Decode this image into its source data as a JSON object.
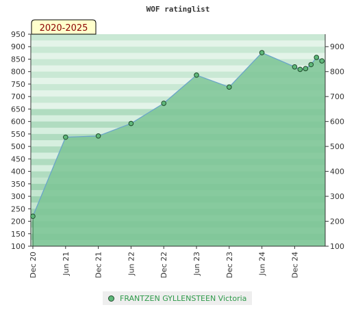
{
  "chart_data": {
    "type": "area",
    "title": "WOF ratinglist",
    "period_badge": "2020-2025",
    "x_ticks": [
      "Dec 20",
      "Jun 21",
      "Dec 21",
      "Jun 22",
      "Dec 22",
      "Jun 23",
      "Dec 23",
      "Jun 24",
      "Dec 24"
    ],
    "y_left_ticks": [
      100,
      150,
      200,
      250,
      300,
      350,
      400,
      450,
      500,
      550,
      600,
      650,
      700,
      750,
      800,
      850,
      900,
      950
    ],
    "y_right_ticks": [
      100,
      200,
      300,
      400,
      500,
      600,
      700,
      800,
      900
    ],
    "ylim": [
      100,
      950
    ],
    "series": [
      {
        "name": "FRANTZEN GYLLENSTEEN Victoria",
        "x": [
          0,
          6,
          12,
          18,
          24,
          30,
          36,
          42,
          48,
          49,
          50,
          51,
          52,
          53
        ],
        "values": [
          220,
          537,
          542,
          592,
          673,
          786,
          738,
          876,
          819,
          809,
          812,
          828,
          857,
          843
        ]
      }
    ],
    "x_unit": "months since Dec 20",
    "colors": {
      "area_fill": "#7cc495",
      "line": "#6aa5c9",
      "marker": "#5fb87a",
      "marker_stroke": "#1f4a2b",
      "badge_bg": "#ffffcc",
      "badge_text": "#8b0000"
    }
  }
}
